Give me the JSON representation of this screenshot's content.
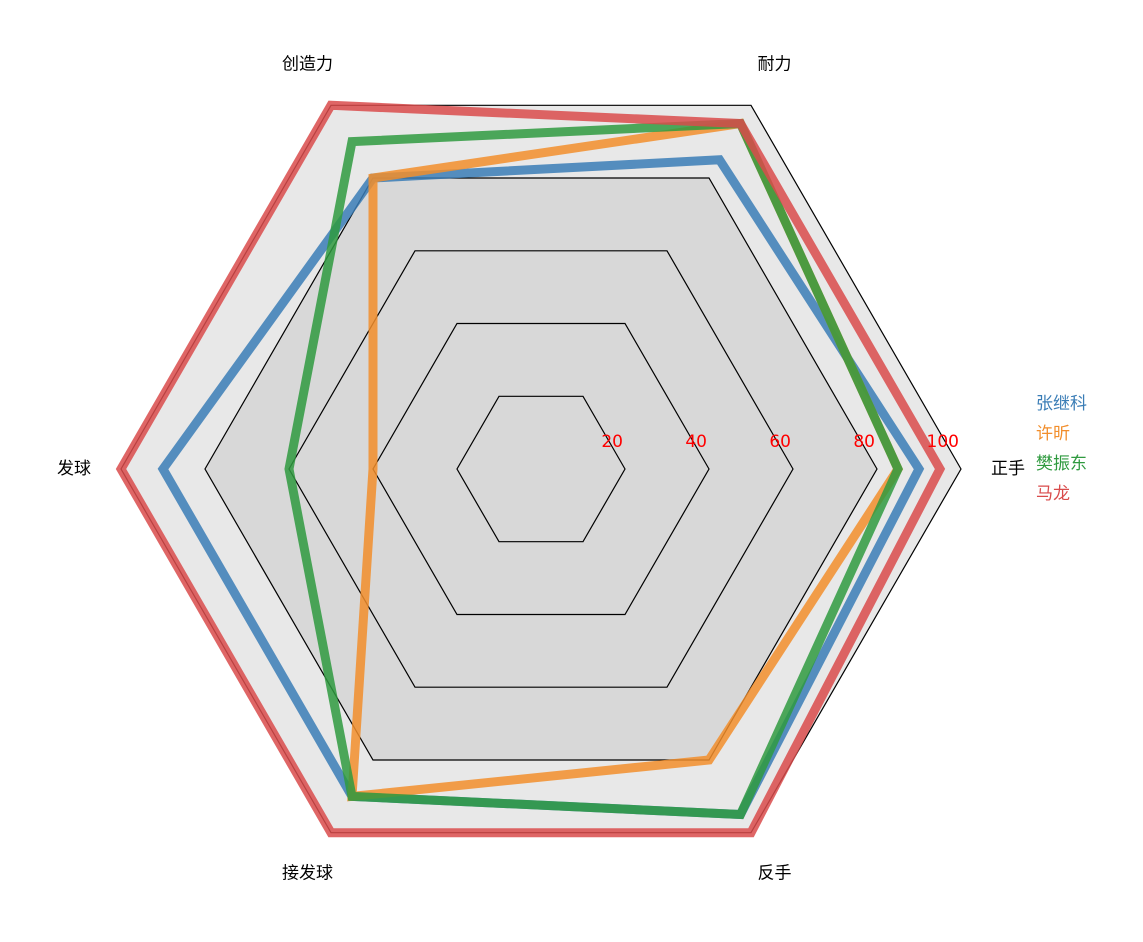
{
  "chart_data": {
    "type": "radar",
    "title": "",
    "categories": [
      "正手",
      "耐力",
      "创造力",
      "发球",
      "接发球",
      "反手"
    ],
    "rmax": 100,
    "ticks": [
      20,
      40,
      60,
      80,
      100
    ],
    "tick_color": "#ff0000",
    "background_fill": "#e8e8e8",
    "inner_fill": "#d8d8d8",
    "series": [
      {
        "name": "张继科",
        "color": "#3a7db6",
        "values": [
          90,
          85,
          80,
          90,
          90,
          95
        ]
      },
      {
        "name": "许昕",
        "color": "#f28e2b",
        "values": [
          85,
          95,
          80,
          40,
          90,
          80
        ]
      },
      {
        "name": "樊振东",
        "color": "#2f9a3f",
        "values": [
          85,
          95,
          90,
          60,
          90,
          95
        ]
      },
      {
        "name": "马龙",
        "color": "#d94b4b",
        "values": [
          95,
          95,
          100,
          100,
          100,
          100
        ]
      }
    ],
    "legend_position": "right"
  }
}
